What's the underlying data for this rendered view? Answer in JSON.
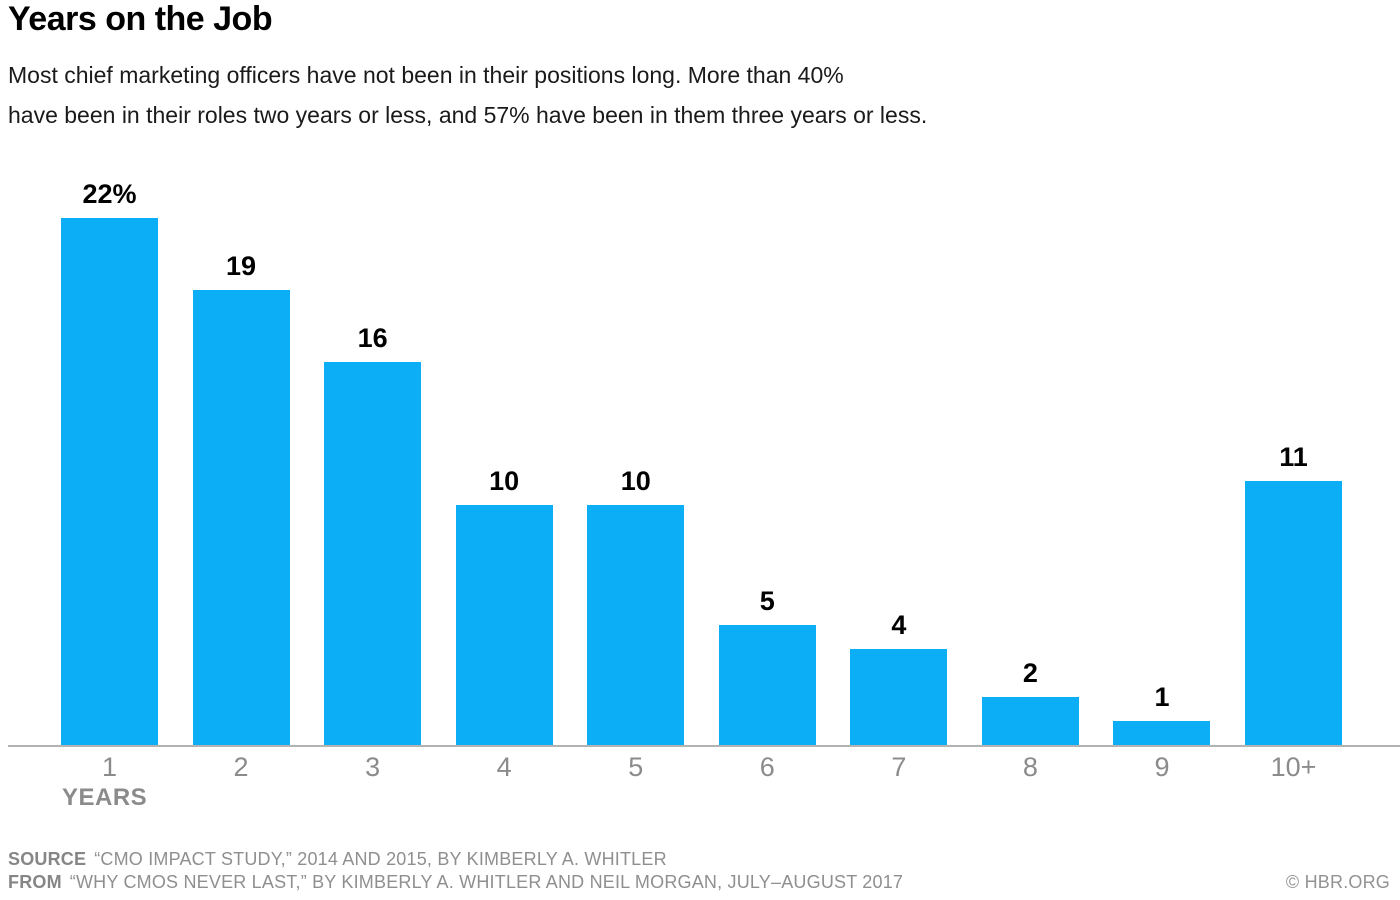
{
  "header": {
    "title": "Years on the Job",
    "subtitle_line1": "Most chief marketing officers have not been in their positions long. More than 40%",
    "subtitle_line2": "have been in their roles two years or less, and 57% have been in them three years or less."
  },
  "chart_data": {
    "type": "bar",
    "categories": [
      "1",
      "2",
      "3",
      "4",
      "5",
      "6",
      "7",
      "8",
      "9",
      "10+"
    ],
    "values": [
      22,
      19,
      16,
      10,
      10,
      5,
      4,
      2,
      1,
      11
    ],
    "value_labels": [
      "22%",
      "19",
      "16",
      "10",
      "10",
      "5",
      "4",
      "2",
      "1",
      "11"
    ],
    "title": "Years on the Job",
    "xlabel": "YEARS",
    "ylabel": "",
    "ylim": [
      0,
      22
    ],
    "grid": false,
    "legend": false,
    "bar_color": "#0caef5",
    "axis_line_color": "#b3b3b3",
    "tick_label_color": "#8b8b8b"
  },
  "footer": {
    "source_label": "SOURCE",
    "source_text": "“CMO IMPACT STUDY,” 2014 AND 2015, BY KIMBERLY A. WHITLER",
    "from_label": "FROM",
    "from_text": "“WHY CMOS NEVER LAST,” BY KIMBERLY A. WHITLER AND NEIL MORGAN, JULY–AUGUST 2017",
    "copyright": "© HBR.ORG"
  }
}
